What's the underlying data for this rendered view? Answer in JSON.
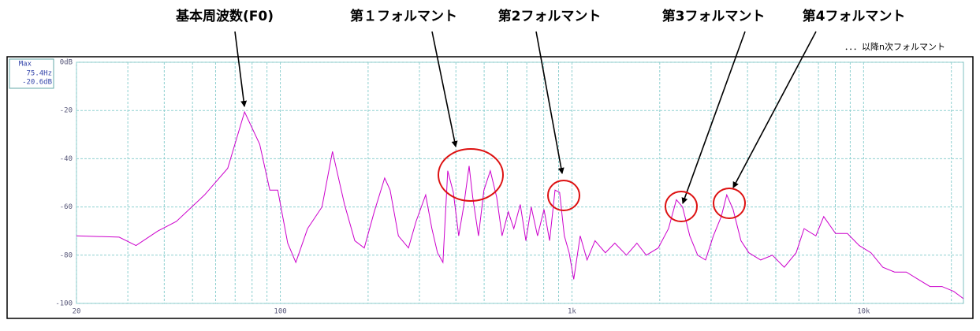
{
  "chart_data": {
    "type": "line",
    "xscale": "log",
    "grid": true,
    "annotations": [
      "基本周波数(F0)",
      "第１フォルマント",
      "第2フォルマント",
      "第3フォルマント",
      "第4フォルマント",
      "．．．以降n次フォルマント"
    ],
    "info_box": [
      "Max",
      "75.4Hz",
      "-20.6dB"
    ],
    "xlim": [
      20,
      22000
    ],
    "xticks": [
      20,
      100,
      {
        "value": 1000,
        "label": "1k"
      },
      {
        "value": 10000,
        "label": "10k"
      }
    ],
    "xminorticks": [
      30,
      40,
      50,
      60,
      70,
      80,
      90,
      200,
      300,
      400,
      500,
      600,
      700,
      800,
      900,
      2000,
      3000,
      4000,
      5000,
      6000,
      7000,
      8000,
      9000,
      20000
    ],
    "ylim": [
      -100,
      0
    ],
    "yticks": [
      {
        "value": 0,
        "label": "0dB"
      },
      -20,
      -40,
      -60,
      -80,
      -100
    ],
    "x": [
      20,
      28,
      32,
      38,
      44,
      55,
      66,
      75.4,
      85,
      92,
      98,
      106,
      113,
      124,
      139,
      151,
      166,
      180,
      194,
      210,
      228,
      238,
      254,
      275,
      292,
      315,
      331,
      346,
      361,
      375,
      392,
      409,
      425,
      444,
      457,
      478,
      499,
      525,
      552,
      576,
      605,
      632,
      665,
      695,
      725,
      762,
      802,
      838,
      875,
      907,
      942,
      978,
      1014,
      1067,
      1127,
      1200,
      1302,
      1403,
      1538,
      1670,
      1798,
      1977,
      2143,
      2281,
      2394,
      2535,
      2698,
      2871,
      3055,
      3251,
      3396,
      3568,
      3797,
      4041,
      4437,
      4868,
      5346,
      5870,
      6254,
      6859,
      7300,
      8015,
      8800,
      9660,
      10600,
      11640,
      12770,
      14020,
      15380,
      16900,
      18570,
      20370,
      21980
    ],
    "series": [
      {
        "color": "#cc00cc",
        "values": [
          -72,
          -72.5,
          -76,
          -70,
          -66,
          -55,
          -44,
          -20.6,
          -34,
          -53,
          -53,
          -75,
          -83,
          -69,
          -60,
          -37,
          -59,
          -74,
          -77,
          -62,
          -48,
          -53,
          -72,
          -77,
          -66,
          -55,
          -69,
          -79,
          -83,
          -45,
          -54,
          -72,
          -60,
          -43,
          -56,
          -72,
          -53,
          -45,
          -56,
          -72,
          -62,
          -69,
          -59,
          -74,
          -60,
          -72,
          -61,
          -74,
          -53,
          -54,
          -72,
          -79,
          -90,
          -72,
          -82,
          -74,
          -79,
          -75,
          -80,
          -75,
          -80,
          -77,
          -69,
          -57,
          -60,
          -72,
          -80,
          -82,
          -72,
          -64,
          -55,
          -61,
          -74,
          -79,
          -82,
          -80,
          -85,
          -79,
          -69,
          -72,
          -64,
          -71,
          -71,
          -76,
          -79,
          -85,
          -87,
          -87,
          -90,
          -93,
          -93,
          -95,
          -98
        ]
      }
    ]
  }
}
